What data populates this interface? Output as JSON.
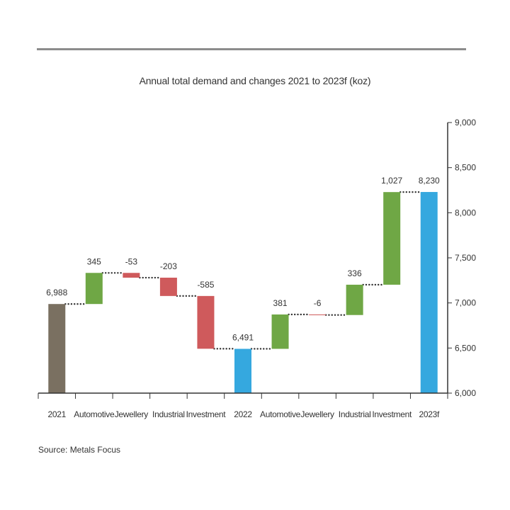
{
  "chart_data": {
    "type": "waterfall",
    "title": "Annual total demand and changes 2021 to 2023f (koz)",
    "source": "Source: Metals Focus",
    "ylim": [
      6000,
      9000
    ],
    "yticks": [
      6000,
      6500,
      7000,
      7500,
      8000,
      8500,
      9000
    ],
    "ytick_labels": [
      "6,000",
      "6,500",
      "7,000",
      "7,500",
      "8,000",
      "8,500",
      "9,000"
    ],
    "y_axis_side": "right",
    "connectors": "dotted",
    "colors": {
      "total_2021": "#7a7061",
      "total": "#35a8df",
      "increase": "#6fa745",
      "decrease": "#cf5a5c",
      "connector": "#333333",
      "axis": "#333333"
    },
    "bars": [
      {
        "category": "2021",
        "kind": "total",
        "value": 6988,
        "label": "6,988",
        "color_key": "total_2021"
      },
      {
        "category": "Automotive",
        "kind": "delta",
        "value": 345,
        "label": "345"
      },
      {
        "category": "Jewellery",
        "kind": "delta",
        "value": -53,
        "label": "-53"
      },
      {
        "category": "Industrial",
        "kind": "delta",
        "value": -203,
        "label": "-203"
      },
      {
        "category": "Investment",
        "kind": "delta",
        "value": -585,
        "label": "-585"
      },
      {
        "category": "2022",
        "kind": "total",
        "value": 6491,
        "label": "6,491",
        "color_key": "total"
      },
      {
        "category": "Automotive",
        "kind": "delta",
        "value": 381,
        "label": "381"
      },
      {
        "category": "Jewellery",
        "kind": "delta",
        "value": -6,
        "label": "-6"
      },
      {
        "category": "Industrial",
        "kind": "delta",
        "value": 336,
        "label": "336"
      },
      {
        "category": "Investment",
        "kind": "delta",
        "value": 1027,
        "label": "1,027"
      },
      {
        "category": "2023f",
        "kind": "total",
        "value": 8230,
        "label": "8,230",
        "color_key": "total"
      }
    ]
  }
}
